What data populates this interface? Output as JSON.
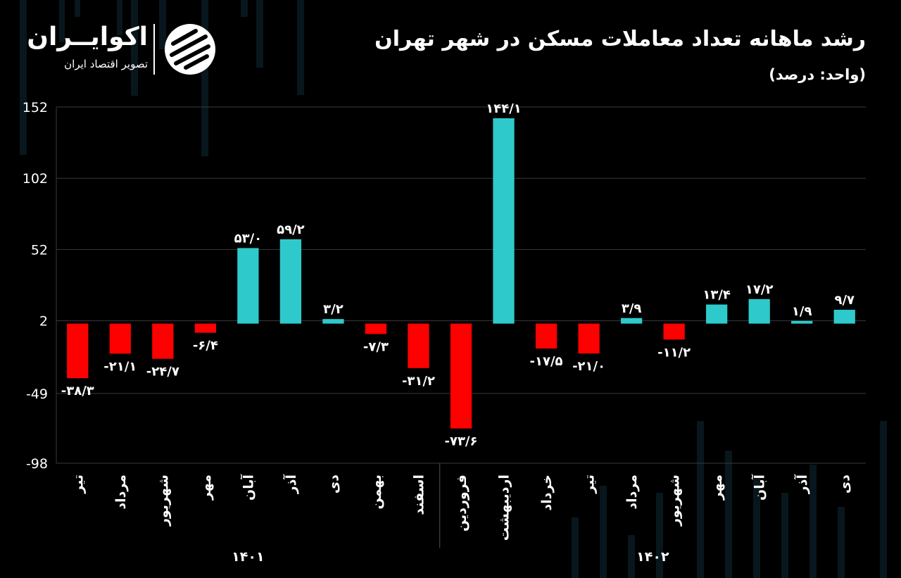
{
  "header": {
    "title": "رشد ماهانه تعداد معاملات مسکن در شهر تهران",
    "subtitle": "(واحد: درصد)"
  },
  "brand": {
    "name": "اکوایــران",
    "tagline": "تصویر اقتصاد ایران",
    "logo_icon": "ecoiran-stripes-logo"
  },
  "colors": {
    "positive": "#2ecacb",
    "negative": "#ff0000",
    "grid": "#3a3a3a",
    "text": "#ffffff",
    "background": "#000000"
  },
  "chart_data": {
    "type": "bar",
    "categories": [
      "تیر",
      "مرداد",
      "شهریور",
      "مهر",
      "آبان",
      "آذر",
      "دی",
      "بهمن",
      "اسفند",
      "فروردین",
      "اردیبهشت",
      "خرداد",
      "تیر",
      "مرداد",
      "شهریور",
      "مهر",
      "آبان",
      "آذر",
      "دی"
    ],
    "values": [
      -38.3,
      -21.1,
      -24.7,
      -6.4,
      53.0,
      59.2,
      3.2,
      -7.3,
      -31.2,
      -73.6,
      144.1,
      -17.5,
      -21.0,
      3.9,
      -11.2,
      13.4,
      17.2,
      1.9,
      9.7
    ],
    "data_labels": [
      "-۳۸/۳",
      "-۲۱/۱",
      "-۲۴/۷",
      "-۶/۴",
      "۵۳/۰",
      "۵۹/۲",
      "۳/۲",
      "-۷/۳",
      "-۳۱/۲",
      "-۷۳/۶",
      "۱۴۴/۱",
      "-۱۷/۵",
      "-۲۱/۰",
      "۳/۹",
      "-۱۱/۲",
      "۱۳/۴",
      "۱۷/۲",
      "۱/۹",
      "۹/۷"
    ],
    "year_groups": [
      {
        "label": "۱۴۰۱",
        "start": 0,
        "count": 9
      },
      {
        "label": "۱۴۰۲",
        "start": 9,
        "count": 10
      }
    ],
    "ylim": [
      -98,
      152
    ],
    "yticks": [
      152,
      102,
      52,
      2,
      -49,
      -98
    ],
    "ytick_labels": [
      "152",
      "102",
      "52",
      "2",
      "-49",
      "-98"
    ],
    "grid": true
  }
}
